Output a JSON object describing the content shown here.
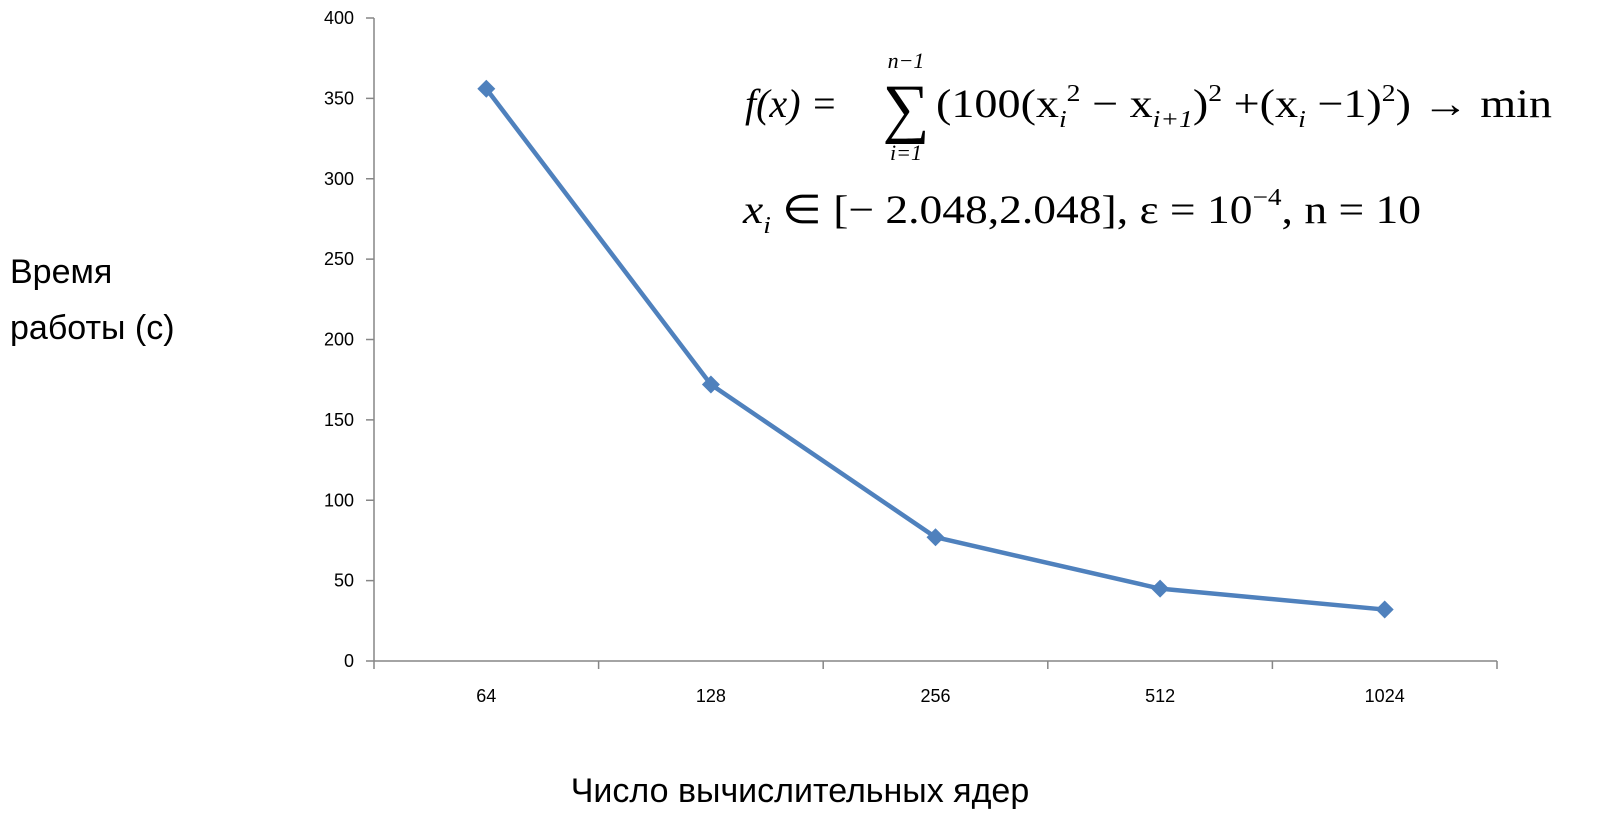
{
  "chart_data": {
    "type": "line",
    "categories": [
      "64",
      "128",
      "256",
      "512",
      "1024"
    ],
    "series": [
      {
        "values": [
          356,
          172,
          77,
          45,
          32
        ],
        "color": "#4F81BD",
        "marker": "diamond"
      }
    ],
    "xlabel": "Число вычислительных ядер",
    "ylabel_lines": [
      "Время",
      "работы (с)"
    ],
    "ylim": [
      0,
      400
    ],
    "yticks": [
      0,
      50,
      100,
      150,
      200,
      250,
      300,
      350,
      400
    ],
    "grid": false,
    "legend": "none",
    "annotation": {
      "line1": "f(x) = Σ_{i=1}^{n−1} (100(x_i^2 − x_{i+1})^2 + (x_i − 1)^2) → min",
      "line2": "x_i ∈ [−2.048, 2.048], ε = 10^−4, n = 10"
    }
  },
  "formula": {
    "fx": "f(x) =",
    "sigma": "∑",
    "sum_upper": "n−1",
    "sum_lower": "i=1",
    "body_a": "(100(x",
    "body_i": "i",
    "body_2": "2",
    "body_b": " − x",
    "body_i1": "i+1",
    "body_c": ")",
    "body_sq1": "2",
    "body_d": " +(x",
    "body_i2": "i",
    "body_e": " −1)",
    "body_sq2": "2",
    "body_f": ") → min",
    "line2_x": "x",
    "line2_i": "i",
    "line2_a": " ∈ [− 2.048,2.048],  ε = 10",
    "line2_exp": "−4",
    "line2_b": ", n = 10"
  }
}
